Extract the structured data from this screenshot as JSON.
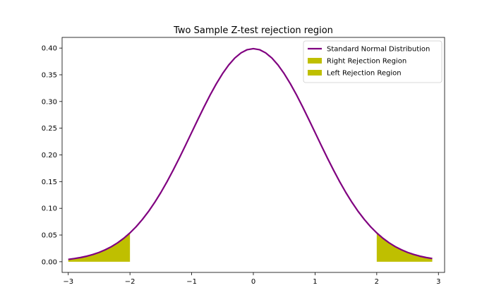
{
  "chart_data": {
    "type": "line",
    "title": "Two Sample Z-test rejection region",
    "xlabel": "",
    "ylabel": "",
    "xlim": [
      -3.1,
      3.1
    ],
    "ylim": [
      -0.02,
      0.42
    ],
    "x_ticks": [
      -3,
      -2,
      -1,
      0,
      1,
      2,
      3
    ],
    "x_tick_labels": [
      "−3",
      "−2",
      "−1",
      "0",
      "1",
      "2",
      "3"
    ],
    "y_ticks": [
      0.0,
      0.05,
      0.1,
      0.15,
      0.2,
      0.25,
      0.3,
      0.35,
      0.4
    ],
    "y_tick_labels": [
      "0.00",
      "0.05",
      "0.10",
      "0.15",
      "0.20",
      "0.25",
      "0.30",
      "0.35",
      "0.40"
    ],
    "grid": false,
    "legend_position": "top-right",
    "series": [
      {
        "name": "Standard Normal Distribution",
        "type": "line",
        "color": "#800080",
        "x": [
          -3.0,
          -2.9,
          -2.8,
          -2.7,
          -2.6,
          -2.5,
          -2.4,
          -2.3,
          -2.2,
          -2.1,
          -2.0,
          -1.9,
          -1.8,
          -1.7,
          -1.6,
          -1.5,
          -1.4,
          -1.3,
          -1.2,
          -1.1,
          -1.0,
          -0.9,
          -0.8,
          -0.7,
          -0.6,
          -0.5,
          -0.4,
          -0.3,
          -0.2,
          -0.1,
          0.0,
          0.1,
          0.2,
          0.3,
          0.4,
          0.5,
          0.6,
          0.7,
          0.8,
          0.9,
          1.0,
          1.1,
          1.2,
          1.3,
          1.4,
          1.5,
          1.6,
          1.7,
          1.8,
          1.9,
          2.0,
          2.1,
          2.2,
          2.3,
          2.4,
          2.5,
          2.6,
          2.7,
          2.8,
          2.9
        ],
        "y": [
          0.0044,
          0.006,
          0.0079,
          0.0104,
          0.0136,
          0.0175,
          0.0224,
          0.0283,
          0.0355,
          0.044,
          0.054,
          0.0656,
          0.079,
          0.094,
          0.1109,
          0.1295,
          0.1497,
          0.1714,
          0.1942,
          0.2179,
          0.242,
          0.2661,
          0.2897,
          0.3123,
          0.3332,
          0.3521,
          0.3683,
          0.3814,
          0.391,
          0.397,
          0.3989,
          0.397,
          0.391,
          0.3814,
          0.3683,
          0.3521,
          0.3332,
          0.3123,
          0.2897,
          0.2661,
          0.242,
          0.2179,
          0.1942,
          0.1714,
          0.1497,
          0.1295,
          0.1109,
          0.094,
          0.079,
          0.0656,
          0.054,
          0.044,
          0.0355,
          0.0283,
          0.0224,
          0.0175,
          0.0136,
          0.0104,
          0.0079,
          0.006
        ]
      },
      {
        "name": "Right Rejection Region",
        "type": "area",
        "color": "#bfbf00",
        "x": [
          2.0,
          2.1,
          2.2,
          2.3,
          2.4,
          2.5,
          2.6,
          2.7,
          2.8,
          2.9
        ],
        "y": [
          0.054,
          0.044,
          0.0355,
          0.0283,
          0.0224,
          0.0175,
          0.0136,
          0.0104,
          0.0079,
          0.006
        ]
      },
      {
        "name": "Left Rejection Region",
        "type": "area",
        "color": "#bfbf00",
        "x": [
          -3.0,
          -2.9,
          -2.8,
          -2.7,
          -2.6,
          -2.5,
          -2.4,
          -2.3,
          -2.2,
          -2.1,
          -2.0
        ],
        "y": [
          0.0044,
          0.006,
          0.0079,
          0.0104,
          0.0136,
          0.0175,
          0.0224,
          0.0283,
          0.0355,
          0.044,
          0.054
        ]
      }
    ]
  }
}
